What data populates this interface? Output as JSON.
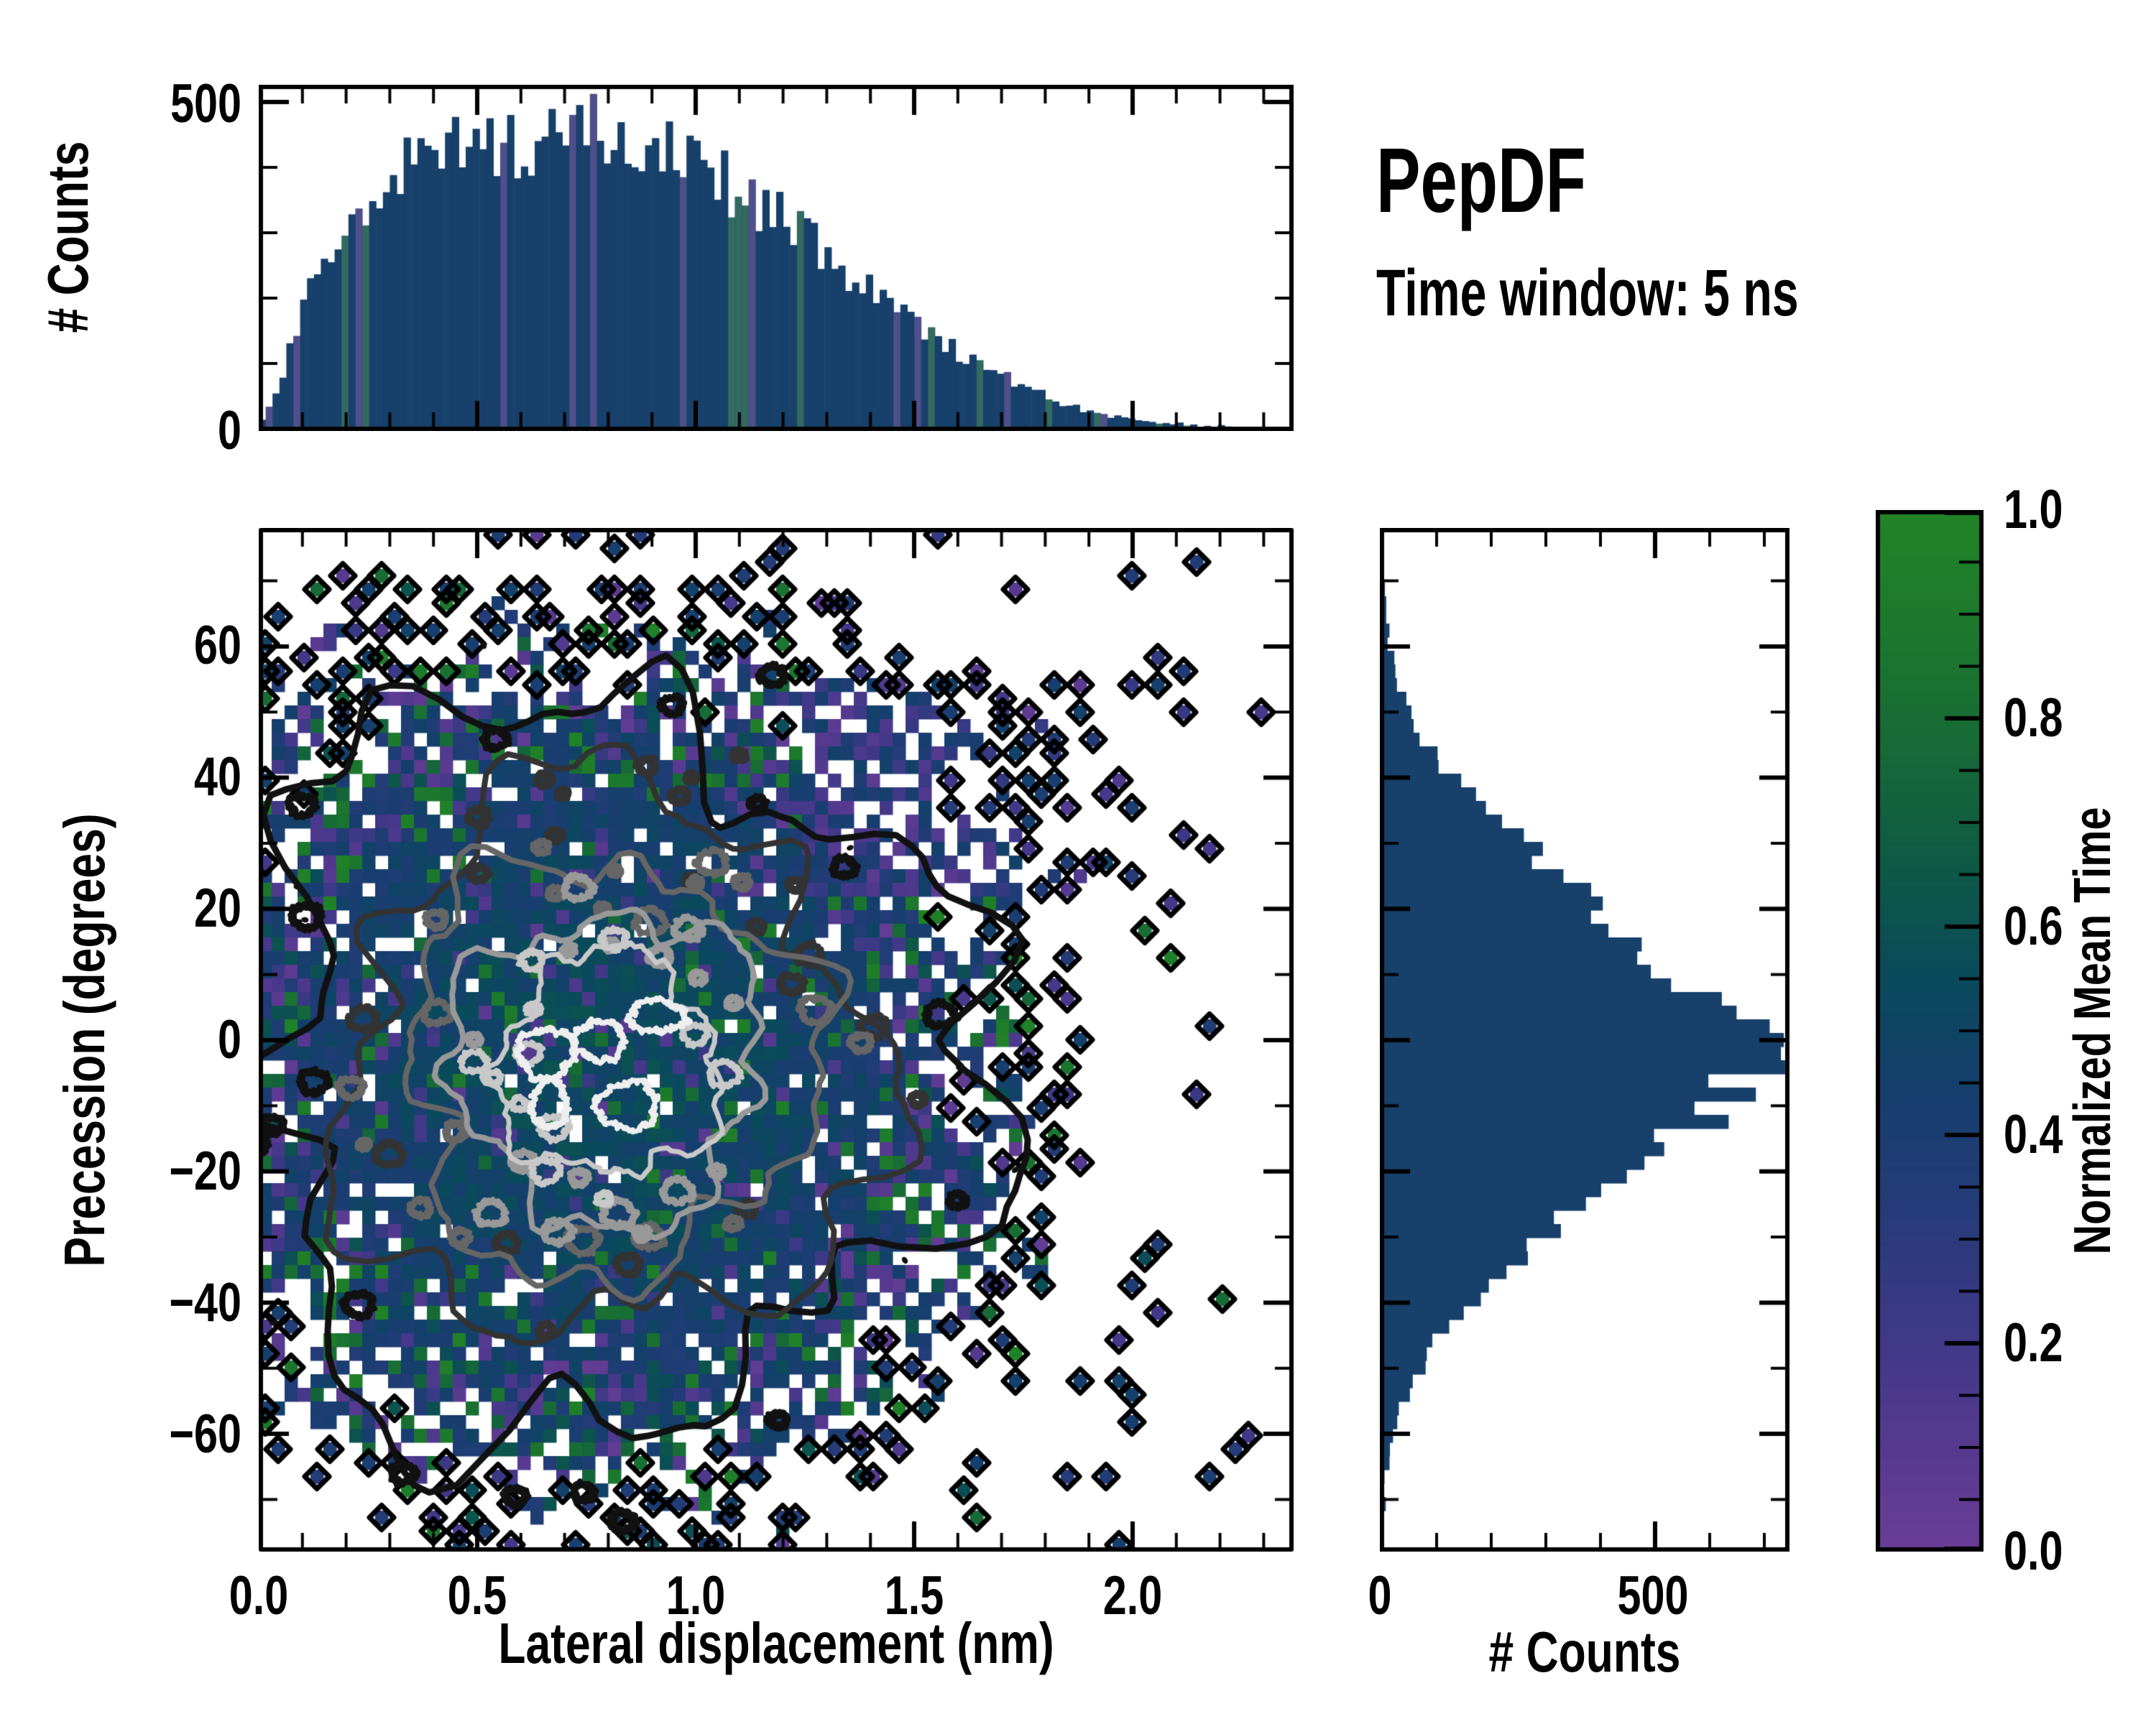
{
  "annotation": {
    "title": "PepDF",
    "subtitle": "Time window: 5 ns"
  },
  "panels": {
    "top_hist": {
      "ylabel": "# Counts",
      "ytick_labels": [
        "500",
        "0"
      ]
    },
    "main": {
      "xlabel": "Lateral displacement (nm)",
      "ylabel": "Precession (degrees)",
      "xtick_labels": [
        "0.0",
        "0.5",
        "1.0",
        "1.5",
        "2.0"
      ],
      "ytick_labels": [
        "60",
        "40",
        "20",
        "0",
        "−20",
        "−40",
        "−60"
      ]
    },
    "right_hist": {
      "xlabel": "# Counts",
      "xtick_labels": [
        "0",
        "500"
      ]
    },
    "colorbar": {
      "label": "Normalized Mean Time",
      "tick_labels": [
        "1.0",
        "0.8",
        "0.6",
        "0.4",
        "0.2",
        "0.0"
      ],
      "range": [
        0,
        1
      ],
      "gradient_stops": [
        {
          "v": 0.0,
          "color": "#6b3d96"
        },
        {
          "v": 0.18,
          "color": "#45388a"
        },
        {
          "v": 0.32,
          "color": "#273b7a"
        },
        {
          "v": 0.45,
          "color": "#153f6d"
        },
        {
          "v": 0.55,
          "color": "#0a4a5c"
        },
        {
          "v": 0.65,
          "color": "#0e5847"
        },
        {
          "v": 0.78,
          "color": "#176b36"
        },
        {
          "v": 0.9,
          "color": "#1d7a2c"
        },
        {
          "v": 1.0,
          "color": "#218426"
        }
      ]
    }
  },
  "colors": {
    "bar_navy": "#17406b",
    "spine": "#000000",
    "contour_levels": [
      "#111111",
      "#333333",
      "#666666",
      "#999999",
      "#c8c8c8",
      "#eeeeee"
    ]
  },
  "chart_data": [
    {
      "type": "bar",
      "role": "top-marginal-histogram",
      "xlabel": "Lateral displacement (nm)",
      "ylabel": "# Counts",
      "xlim": [
        0,
        2.37
      ],
      "ylim": [
        0,
        530
      ],
      "yticks": [
        0,
        500
      ],
      "bins": 150,
      "bar_color": "#17406b",
      "envelope_x": [
        0.0,
        0.03,
        0.06,
        0.1,
        0.14,
        0.18,
        0.22,
        0.26,
        0.3,
        0.34,
        0.38,
        0.42,
        0.46,
        0.5,
        0.55,
        0.6,
        0.65,
        0.7,
        0.75,
        0.8,
        0.85,
        0.9,
        0.95,
        1.0,
        1.05,
        1.1,
        1.15,
        1.2,
        1.25,
        1.3,
        1.35,
        1.4,
        1.45,
        1.5,
        1.55,
        1.6,
        1.65,
        1.7,
        1.75,
        1.8,
        1.85,
        1.9,
        1.95,
        2.0,
        2.05,
        2.1,
        2.15,
        2.2,
        2.25,
        2.3,
        2.37
      ],
      "envelope_counts": [
        5,
        40,
        95,
        170,
        240,
        285,
        320,
        330,
        345,
        400,
        415,
        430,
        425,
        430,
        440,
        430,
        445,
        450,
        455,
        465,
        445,
        430,
        425,
        400,
        390,
        360,
        340,
        320,
        290,
        265,
        240,
        215,
        190,
        165,
        140,
        118,
        100,
        82,
        65,
        50,
        38,
        28,
        20,
        14,
        10,
        7,
        5,
        4,
        2,
        1,
        0
      ]
    },
    {
      "type": "heatmap",
      "role": "joint-2d-histogram",
      "xlabel": "Lateral displacement (nm)",
      "ylabel": "Precession (degrees)",
      "xlim": [
        0,
        2.37
      ],
      "ylim": [
        -78,
        78
      ],
      "xticks": [
        0.0,
        0.5,
        1.0,
        1.5,
        2.0
      ],
      "yticks": [
        -60,
        -40,
        -20,
        0,
        20,
        40,
        60
      ],
      "colormap_label": "Normalized Mean Time",
      "colormap_range": [
        0,
        1
      ],
      "dominant_cell_value": 0.5,
      "density_center": {
        "x_nm": 0.8,
        "y_deg": -4
      },
      "density_sigma": {
        "x_nm_left": 0.42,
        "x_nm_right": 0.38,
        "y_deg": 27
      },
      "grid": {
        "nx": 80,
        "ny": 75
      },
      "contour_levels_grays": [
        "#111111",
        "#333333",
        "#666666",
        "#999999",
        "#c8c8c8",
        "#eeeeee"
      ],
      "notes": "Dense navy/teal core with scattered purple and green cells, white holes, black-outlined isolated outlier cells at the periphery, nested grayscale contours brightening toward the center."
    },
    {
      "type": "bar",
      "role": "right-marginal-histogram",
      "orientation": "horizontal",
      "xlabel": "# Counts",
      "xlim": [
        0,
        750
      ],
      "xticks": [
        0,
        500
      ],
      "ylim": [
        -78,
        78
      ],
      "bins": 75,
      "bar_color": "#17406b",
      "envelope_y": [
        76,
        70,
        65,
        60,
        55,
        50,
        45,
        40,
        35,
        30,
        25,
        20,
        15,
        10,
        5,
        2,
        0,
        -3,
        -6,
        -10,
        -15,
        -20,
        -25,
        -30,
        -35,
        -40,
        -45,
        -50,
        -55,
        -60,
        -65,
        -70,
        -76
      ],
      "envelope_counts": [
        0,
        2,
        6,
        14,
        28,
        50,
        85,
        135,
        195,
        255,
        325,
        395,
        465,
        540,
        615,
        660,
        690,
        700,
        665,
        630,
        550,
        460,
        370,
        290,
        220,
        160,
        112,
        72,
        42,
        22,
        10,
        4,
        0
      ]
    }
  ]
}
